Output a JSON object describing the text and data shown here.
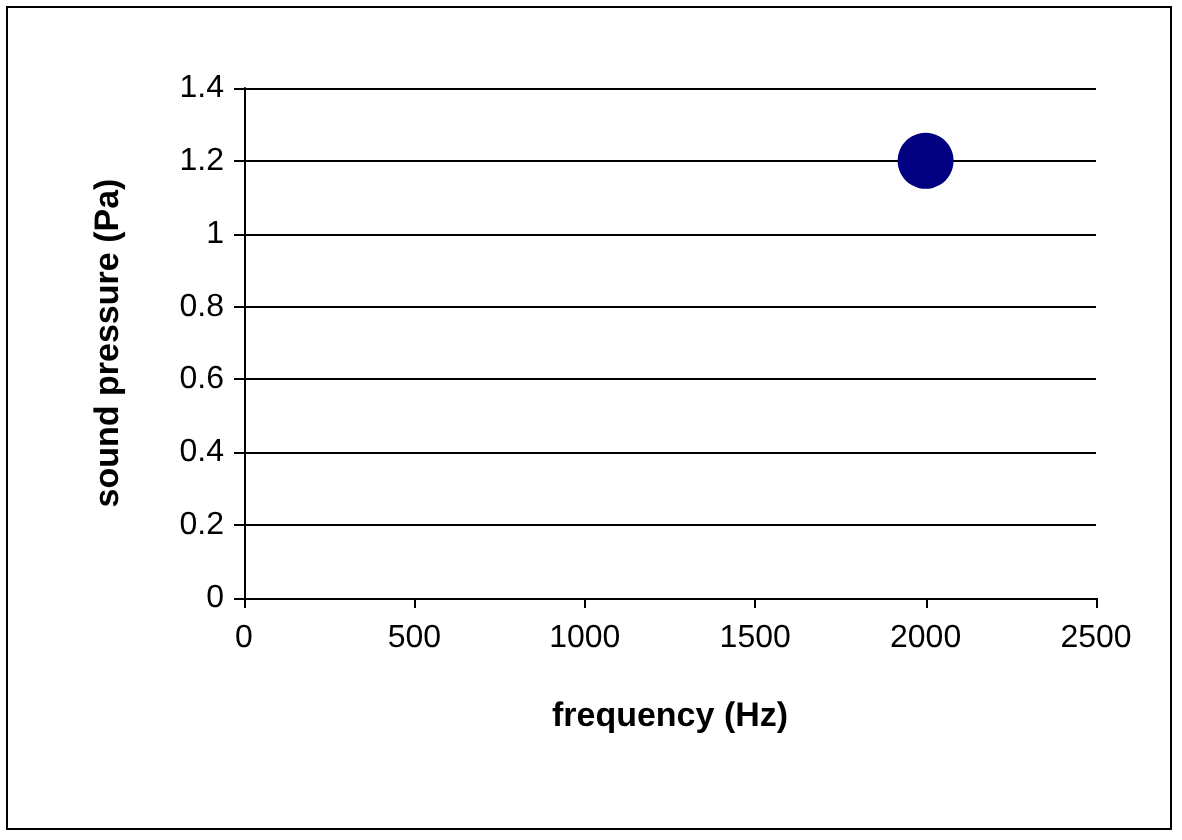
{
  "chart_data": {
    "type": "scatter",
    "xlabel": "frequency (Hz)",
    "ylabel": "sound pressure (Pa)",
    "x": [
      2000
    ],
    "series": [
      {
        "color": "#000080",
        "values": [
          1.2
        ]
      }
    ],
    "xlim": [
      0,
      2500
    ],
    "xticks": [
      0,
      500,
      1000,
      1500,
      2000,
      2500
    ],
    "ylim": [
      0,
      1.4
    ],
    "yticks": [
      0,
      0.2,
      0.4,
      0.6,
      0.8,
      1,
      1.2,
      1.4
    ],
    "grid": "y",
    "marker": "circle"
  }
}
